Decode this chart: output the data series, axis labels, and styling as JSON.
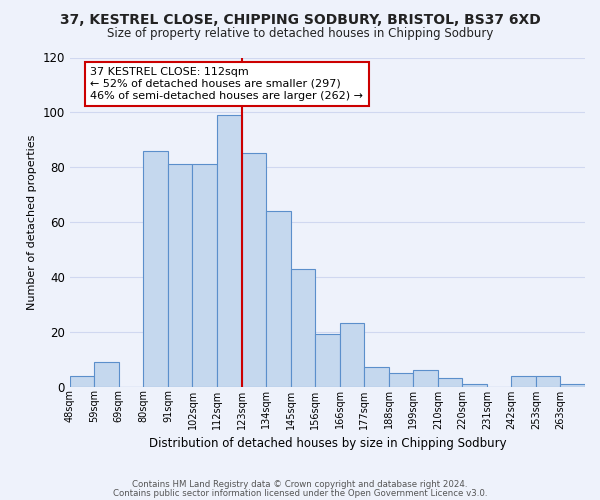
{
  "title": "37, KESTREL CLOSE, CHIPPING SODBURY, BRISTOL, BS37 6XD",
  "subtitle": "Size of property relative to detached houses in Chipping Sodbury",
  "xlabel": "Distribution of detached houses by size in Chipping Sodbury",
  "ylabel": "Number of detached properties",
  "bin_labels": [
    "48sqm",
    "59sqm",
    "69sqm",
    "80sqm",
    "91sqm",
    "102sqm",
    "112sqm",
    "123sqm",
    "134sqm",
    "145sqm",
    "156sqm",
    "166sqm",
    "177sqm",
    "188sqm",
    "199sqm",
    "210sqm",
    "220sqm",
    "231sqm",
    "242sqm",
    "253sqm",
    "263sqm"
  ],
  "counts": [
    4,
    9,
    0,
    86,
    81,
    81,
    99,
    85,
    64,
    43,
    19,
    23,
    7,
    5,
    6,
    3,
    1,
    0,
    4,
    4,
    1
  ],
  "bar_color": "#c5d8ee",
  "bar_edge_color": "#5b8fcb",
  "highlight_bin_index": 6,
  "highlight_line_color": "#cc0000",
  "ylim": [
    0,
    120
  ],
  "yticks": [
    0,
    20,
    40,
    60,
    80,
    100,
    120
  ],
  "annotation_title": "37 KESTREL CLOSE: 112sqm",
  "annotation_line1": "← 52% of detached houses are smaller (297)",
  "annotation_line2": "46% of semi-detached houses are larger (262) →",
  "annotation_box_color": "#ffffff",
  "annotation_box_edge": "#cc0000",
  "footnote1": "Contains HM Land Registry data © Crown copyright and database right 2024.",
  "footnote2": "Contains public sector information licensed under the Open Government Licence v3.0.",
  "background_color": "#eef2fb",
  "grid_color": "#d0d8f0"
}
